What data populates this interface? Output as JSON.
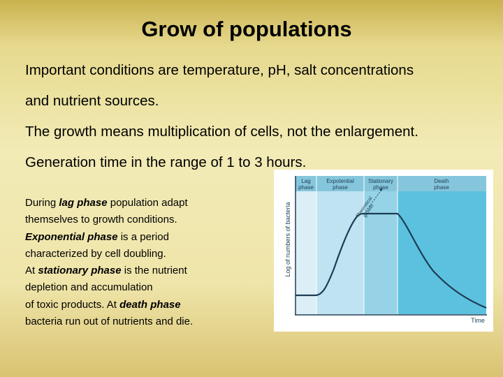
{
  "slide": {
    "title": "Grow of populations",
    "bullets": [
      "Important conditions are temperature, pH, salt concentrations",
      "and nutrient sources.",
      "The growth means multiplication of cells, not the enlargement.",
      "Generation time in the range of 1 to 3 hours."
    ],
    "description": {
      "line1": {
        "pre": "During ",
        "term": "lag phase",
        "post": " population adapt"
      },
      "line2": "themselves to growth conditions.",
      "line3": {
        "term": "Exponential phase",
        "post": " is a period"
      },
      "line4": "characterized by cell doubling.",
      "line5": {
        "pre": "At ",
        "term": "stationary phase",
        "post": " is the nutrient"
      },
      "line6": "depletion and accumulation",
      "line7": {
        "pre": "of toxic products. At ",
        "term": "death phase"
      },
      "line8": "bacteria run out of nutrients and die."
    }
  },
  "diagram": {
    "y_axis_label": "Log of numbers of bacteria",
    "x_axis_label": "Time",
    "phases": [
      {
        "line1": "Lag",
        "line2": "phase"
      },
      {
        "line1": "Expotential",
        "line2": "phase"
      },
      {
        "line1": "Stationary",
        "line2": "phase"
      },
      {
        "line1": "Death",
        "line2": "phase"
      }
    ],
    "annotation": {
      "line1": "Theoretical",
      "line2": "growth"
    },
    "colors": {
      "lag_band": "#dceff6",
      "exponential_band": "#bfe3f1",
      "stationary_band": "#96d3e7",
      "death_band": "#5cc1df",
      "header": "#86c6dc",
      "curve": "#1d3d55"
    }
  }
}
